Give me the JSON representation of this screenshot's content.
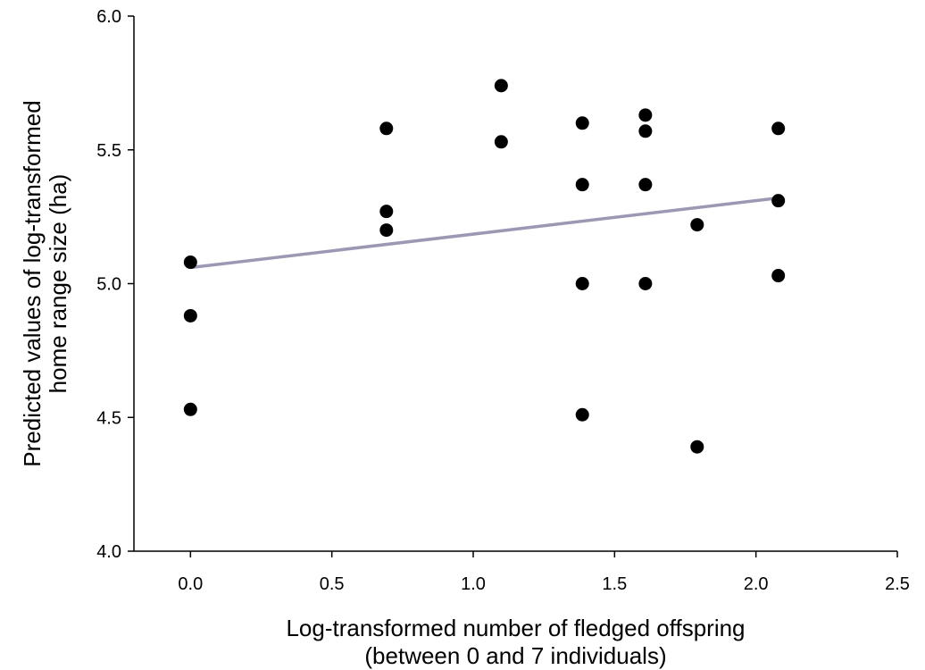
{
  "chart_data": {
    "type": "scatter",
    "title": "",
    "xlabel": [
      "Log-transformed number of fledged offspring",
      "(between 0 and 7 individuals)"
    ],
    "ylabel": [
      "Predicted values of log-transformed",
      "home range size (ha)"
    ],
    "xlim": [
      -0.2,
      2.5
    ],
    "ylim": [
      4.0,
      6.0
    ],
    "x_ticks": [
      "0.0",
      "0.5",
      "1.0",
      "1.5",
      "2.0",
      "2.5"
    ],
    "y_ticks": [
      "4.0",
      "4.5",
      "5.0",
      "5.5",
      "6.0"
    ],
    "grid": false,
    "legend": "none",
    "point_color": "#000000",
    "fit_line_color": "#9a98b2",
    "series": [
      {
        "points": [
          {
            "x": 0.0,
            "y": 5.08
          },
          {
            "x": 0.0,
            "y": 4.88
          },
          {
            "x": 0.0,
            "y": 4.53
          },
          {
            "x": 0.693,
            "y": 5.58
          },
          {
            "x": 0.693,
            "y": 5.27
          },
          {
            "x": 0.693,
            "y": 5.2
          },
          {
            "x": 1.099,
            "y": 5.74
          },
          {
            "x": 1.099,
            "y": 5.53
          },
          {
            "x": 1.386,
            "y": 5.6
          },
          {
            "x": 1.386,
            "y": 5.37
          },
          {
            "x": 1.386,
            "y": 5.0
          },
          {
            "x": 1.386,
            "y": 4.51
          },
          {
            "x": 1.609,
            "y": 5.63
          },
          {
            "x": 1.609,
            "y": 5.57
          },
          {
            "x": 1.609,
            "y": 5.37
          },
          {
            "x": 1.609,
            "y": 5.0
          },
          {
            "x": 1.792,
            "y": 5.22
          },
          {
            "x": 1.792,
            "y": 4.39
          },
          {
            "x": 2.079,
            "y": 5.58
          },
          {
            "x": 2.079,
            "y": 5.31
          },
          {
            "x": 2.079,
            "y": 5.03
          }
        ]
      }
    ],
    "fit_line": {
      "x": [
        0.0,
        2.079
      ],
      "y": [
        5.06,
        5.32
      ]
    }
  }
}
